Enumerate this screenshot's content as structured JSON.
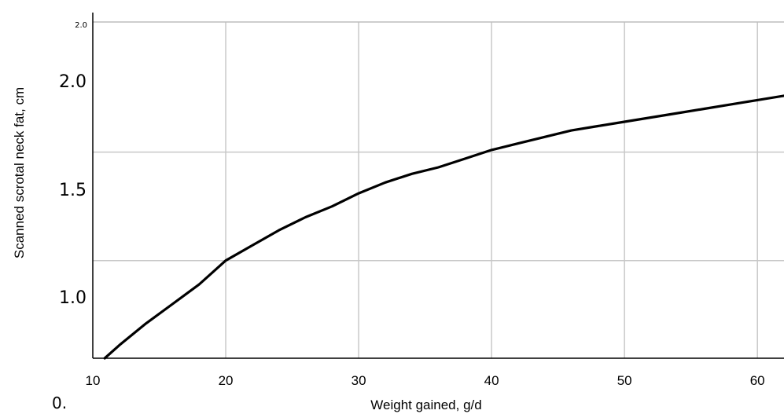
{
  "chart_data": {
    "type": "line",
    "title": "",
    "xlabel": "Weight gained, g/d",
    "ylabel": "Scanned scrotal neck fat, cm",
    "xlim": [
      10,
      62
    ],
    "ylim": [
      0.75,
      2.3
    ],
    "grid": true,
    "x_ticks": [
      "10",
      "20",
      "30",
      "40",
      "50",
      "60"
    ],
    "y_ticks": [
      "1.0",
      "1.5",
      "2.0"
    ],
    "corner_tick": "2.0",
    "stray_label": "0.",
    "series": [
      {
        "x": [
          10.9,
          12,
          14,
          16,
          18,
          20,
          22,
          24,
          26,
          28,
          30,
          32,
          34,
          36,
          38,
          40,
          42,
          44,
          46,
          48,
          50,
          52,
          54,
          56,
          58,
          60,
          62
        ],
        "y": [
          0.75,
          0.81,
          0.91,
          1.0,
          1.09,
          1.2,
          1.27,
          1.34,
          1.4,
          1.45,
          1.51,
          1.56,
          1.6,
          1.63,
          1.67,
          1.71,
          1.74,
          1.77,
          1.8,
          1.82,
          1.84,
          1.86,
          1.88,
          1.9,
          1.92,
          1.94,
          1.96
        ]
      }
    ]
  }
}
